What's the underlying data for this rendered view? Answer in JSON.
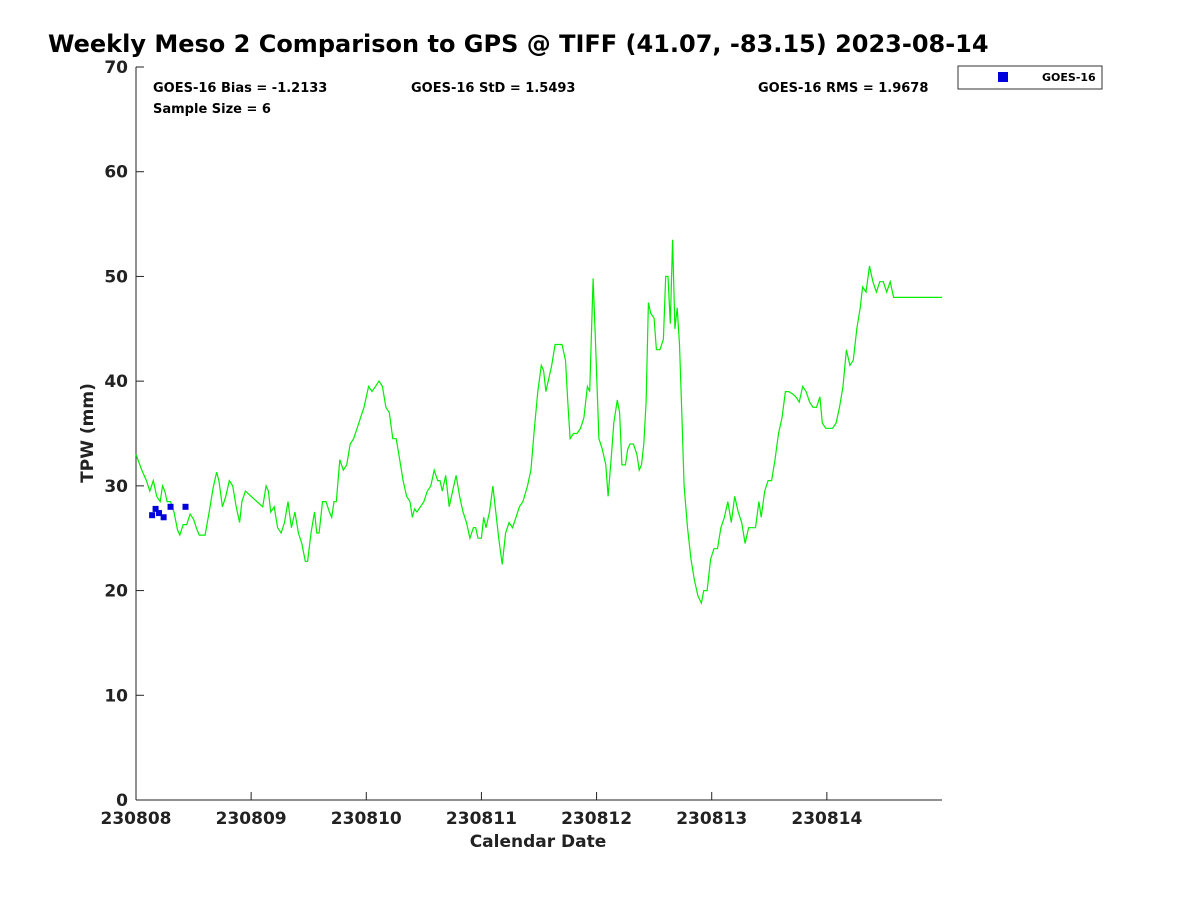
{
  "chart_data": {
    "type": "line",
    "title": "Weekly Meso 2 Comparison to GPS @ TIFF (41.07, -83.15) 2023-08-14",
    "xlabel": "Calendar Date",
    "ylabel": "TPW (mm)",
    "x_tick_labels": [
      "230808",
      "230809",
      "230810",
      "230811",
      "230812",
      "230813",
      "230814"
    ],
    "x_range_days": [
      0,
      7
    ],
    "y_ticks": [
      0,
      10,
      20,
      30,
      40,
      50,
      60,
      70
    ],
    "ylim": [
      0,
      70
    ],
    "grid": false,
    "legend": {
      "position": "top-right-outside",
      "entries": [
        "GOES-16"
      ]
    },
    "stats": {
      "bias": "GOES-16 Bias = -1.2133",
      "std": "GOES-16 StD = 1.5493",
      "rms": "GOES-16 RMS = 1.9678",
      "sample_size": "Sample Size = 6"
    },
    "series": [
      {
        "kind": "line",
        "color": "#00ee00",
        "points": [
          [
            0.0,
            33.0
          ],
          [
            0.05,
            31.5
          ],
          [
            0.09,
            30.5
          ],
          [
            0.12,
            29.5
          ],
          [
            0.15,
            30.5
          ],
          [
            0.18,
            29.0
          ],
          [
            0.21,
            28.5
          ],
          [
            0.23,
            30.0
          ],
          [
            0.25,
            29.5
          ],
          [
            0.27,
            28.5
          ],
          [
            0.3,
            28.5
          ],
          [
            0.33,
            27.5
          ],
          [
            0.36,
            25.8
          ],
          [
            0.38,
            25.3
          ],
          [
            0.41,
            26.3
          ],
          [
            0.44,
            26.3
          ],
          [
            0.47,
            27.3
          ],
          [
            0.5,
            26.8
          ],
          [
            0.53,
            25.8
          ],
          [
            0.55,
            25.3
          ],
          [
            0.6,
            25.3
          ],
          [
            0.64,
            27.8
          ],
          [
            0.67,
            29.8
          ],
          [
            0.7,
            31.3
          ],
          [
            0.72,
            30.5
          ],
          [
            0.75,
            28.0
          ],
          [
            0.78,
            29.0
          ],
          [
            0.81,
            30.5
          ],
          [
            0.84,
            30.0
          ],
          [
            0.87,
            28.0
          ],
          [
            0.9,
            26.5
          ],
          [
            0.92,
            28.5
          ],
          [
            0.95,
            29.5
          ],
          [
            1.0,
            29.0
          ],
          [
            1.05,
            28.5
          ],
          [
            1.1,
            28.0
          ],
          [
            1.13,
            30.0
          ],
          [
            1.15,
            29.5
          ],
          [
            1.17,
            27.5
          ],
          [
            1.2,
            28.0
          ],
          [
            1.23,
            26.0
          ],
          [
            1.26,
            25.5
          ],
          [
            1.29,
            26.5
          ],
          [
            1.32,
            28.5
          ],
          [
            1.35,
            26.0
          ],
          [
            1.38,
            27.5
          ],
          [
            1.41,
            25.5
          ],
          [
            1.44,
            24.5
          ],
          [
            1.47,
            22.8
          ],
          [
            1.49,
            22.8
          ],
          [
            1.52,
            25.5
          ],
          [
            1.55,
            27.5
          ],
          [
            1.57,
            25.5
          ],
          [
            1.59,
            25.5
          ],
          [
            1.62,
            28.5
          ],
          [
            1.65,
            28.5
          ],
          [
            1.68,
            27.5
          ],
          [
            1.7,
            27.0
          ],
          [
            1.72,
            28.5
          ],
          [
            1.74,
            28.5
          ],
          [
            1.77,
            32.5
          ],
          [
            1.8,
            31.5
          ],
          [
            1.83,
            32.0
          ],
          [
            1.86,
            34.0
          ],
          [
            1.89,
            34.5
          ],
          [
            1.92,
            35.5
          ],
          [
            1.95,
            36.5
          ],
          [
            1.98,
            37.5
          ],
          [
            2.0,
            38.5
          ],
          [
            2.02,
            39.5
          ],
          [
            2.05,
            39.0
          ],
          [
            2.08,
            39.5
          ],
          [
            2.11,
            40.0
          ],
          [
            2.14,
            39.5
          ],
          [
            2.17,
            37.5
          ],
          [
            2.2,
            37.0
          ],
          [
            2.23,
            34.5
          ],
          [
            2.26,
            34.5
          ],
          [
            2.29,
            32.5
          ],
          [
            2.32,
            30.5
          ],
          [
            2.35,
            29.0
          ],
          [
            2.38,
            28.5
          ],
          [
            2.4,
            27.0
          ],
          [
            2.42,
            27.8
          ],
          [
            2.44,
            27.5
          ],
          [
            2.47,
            28.0
          ],
          [
            2.5,
            28.5
          ],
          [
            2.53,
            29.5
          ],
          [
            2.56,
            30.0
          ],
          [
            2.59,
            31.5
          ],
          [
            2.62,
            30.5
          ],
          [
            2.64,
            30.5
          ],
          [
            2.66,
            29.5
          ],
          [
            2.69,
            31.0
          ],
          [
            2.72,
            28.0
          ],
          [
            2.75,
            29.5
          ],
          [
            2.78,
            31.0
          ],
          [
            2.81,
            29.0
          ],
          [
            2.84,
            27.5
          ],
          [
            2.87,
            26.5
          ],
          [
            2.9,
            25.0
          ],
          [
            2.93,
            26.0
          ],
          [
            2.95,
            26.0
          ],
          [
            2.97,
            25.0
          ],
          [
            3.0,
            25.0
          ],
          [
            3.02,
            27.0
          ],
          [
            3.04,
            26.0
          ],
          [
            3.07,
            27.5
          ],
          [
            3.1,
            30.0
          ],
          [
            3.12,
            28.0
          ],
          [
            3.15,
            25.0
          ],
          [
            3.18,
            22.5
          ],
          [
            3.21,
            25.5
          ],
          [
            3.24,
            26.5
          ],
          [
            3.27,
            26.0
          ],
          [
            3.3,
            27.0
          ],
          [
            3.33,
            28.0
          ],
          [
            3.36,
            28.5
          ],
          [
            3.4,
            30.0
          ],
          [
            3.43,
            31.5
          ],
          [
            3.46,
            35.5
          ],
          [
            3.49,
            39.0
          ],
          [
            3.52,
            41.5
          ],
          [
            3.54,
            41.0
          ],
          [
            3.56,
            39.0
          ],
          [
            3.58,
            40.0
          ],
          [
            3.61,
            41.5
          ],
          [
            3.64,
            43.5
          ],
          [
            3.67,
            43.5
          ],
          [
            3.7,
            43.5
          ],
          [
            3.73,
            42.0
          ],
          [
            3.75,
            38.0
          ],
          [
            3.77,
            34.5
          ],
          [
            3.8,
            35.0
          ],
          [
            3.83,
            35.0
          ],
          [
            3.86,
            35.5
          ],
          [
            3.89,
            36.5
          ],
          [
            3.92,
            39.5
          ],
          [
            3.94,
            39.0
          ],
          [
            3.97,
            49.8
          ],
          [
            3.99,
            44.0
          ],
          [
            4.02,
            34.5
          ],
          [
            4.05,
            33.5
          ],
          [
            4.08,
            32.0
          ],
          [
            4.1,
            29.0
          ],
          [
            4.13,
            33.0
          ],
          [
            4.15,
            36.0
          ],
          [
            4.18,
            38.2
          ],
          [
            4.2,
            37.0
          ],
          [
            4.22,
            32.0
          ],
          [
            4.25,
            32.0
          ],
          [
            4.27,
            33.5
          ],
          [
            4.29,
            34.0
          ],
          [
            4.32,
            34.0
          ],
          [
            4.35,
            33.0
          ],
          [
            4.37,
            31.5
          ],
          [
            4.39,
            32.0
          ],
          [
            4.41,
            34.0
          ],
          [
            4.43,
            38.0
          ],
          [
            4.45,
            47.5
          ],
          [
            4.47,
            46.5
          ],
          [
            4.5,
            46.0
          ],
          [
            4.52,
            43.0
          ],
          [
            4.55,
            43.0
          ],
          [
            4.58,
            44.0
          ],
          [
            4.6,
            50.0
          ],
          [
            4.62,
            50.0
          ],
          [
            4.64,
            45.5
          ],
          [
            4.66,
            53.5
          ],
          [
            4.68,
            45.0
          ],
          [
            4.7,
            47.0
          ],
          [
            4.72,
            43.5
          ],
          [
            4.74,
            37.0
          ],
          [
            4.76,
            30.0
          ],
          [
            4.79,
            26.0
          ],
          [
            4.82,
            23.0
          ],
          [
            4.85,
            21.0
          ],
          [
            4.88,
            19.5
          ],
          [
            4.91,
            18.8
          ],
          [
            4.93,
            20.0
          ],
          [
            4.96,
            20.0
          ],
          [
            4.99,
            23.0
          ],
          [
            5.02,
            24.0
          ],
          [
            5.05,
            24.0
          ],
          [
            5.08,
            26.0
          ],
          [
            5.11,
            27.0
          ],
          [
            5.14,
            28.5
          ],
          [
            5.17,
            26.5
          ],
          [
            5.2,
            29.0
          ],
          [
            5.23,
            27.5
          ],
          [
            5.26,
            26.5
          ],
          [
            5.29,
            24.5
          ],
          [
            5.32,
            26.0
          ],
          [
            5.35,
            26.0
          ],
          [
            5.38,
            26.0
          ],
          [
            5.41,
            28.5
          ],
          [
            5.43,
            27.0
          ],
          [
            5.46,
            29.5
          ],
          [
            5.49,
            30.5
          ],
          [
            5.52,
            30.5
          ],
          [
            5.55,
            32.5
          ],
          [
            5.58,
            35.0
          ],
          [
            5.61,
            36.5
          ],
          [
            5.64,
            39.0
          ],
          [
            5.67,
            39.0
          ],
          [
            5.7,
            38.8
          ],
          [
            5.73,
            38.5
          ],
          [
            5.76,
            38.0
          ],
          [
            5.79,
            39.5
          ],
          [
            5.82,
            39.0
          ],
          [
            5.85,
            38.0
          ],
          [
            5.88,
            37.5
          ],
          [
            5.91,
            37.5
          ],
          [
            5.94,
            38.5
          ],
          [
            5.96,
            36.0
          ],
          [
            5.99,
            35.5
          ],
          [
            6.02,
            35.5
          ],
          [
            6.05,
            35.5
          ],
          [
            6.08,
            36.0
          ],
          [
            6.11,
            37.5
          ],
          [
            6.14,
            39.5
          ],
          [
            6.17,
            43.0
          ],
          [
            6.2,
            41.5
          ],
          [
            6.23,
            42.0
          ],
          [
            6.26,
            45.0
          ],
          [
            6.29,
            47.0
          ],
          [
            6.31,
            49.0
          ],
          [
            6.34,
            48.5
          ],
          [
            6.37,
            51.0
          ],
          [
            6.4,
            49.5
          ],
          [
            6.43,
            48.5
          ],
          [
            6.46,
            49.5
          ],
          [
            6.49,
            49.5
          ],
          [
            6.52,
            48.5
          ],
          [
            6.55,
            49.5
          ],
          [
            6.58,
            48.0
          ],
          [
            7.0,
            48.0
          ]
        ]
      },
      {
        "kind": "markers",
        "name": "GOES-16",
        "color": "#0000dd",
        "points": [
          [
            0.14,
            27.2
          ],
          [
            0.17,
            27.8
          ],
          [
            0.2,
            27.4
          ],
          [
            0.24,
            27.0
          ],
          [
            0.3,
            28.0
          ],
          [
            0.43,
            28.0
          ]
        ]
      }
    ]
  }
}
